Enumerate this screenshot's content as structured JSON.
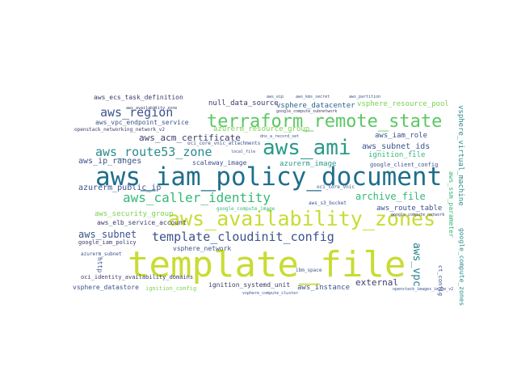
{
  "words": [
    {
      "id": "template_file",
      "text": "template_file",
      "color": "#c8dc34"
    },
    {
      "id": "aws_iam_policy_document",
      "text": "aws_iam_policy_document",
      "color": "#1f6f8b"
    },
    {
      "id": "aws_availability_zones",
      "text": "aws_availability_zones",
      "color": "#c8dc34"
    },
    {
      "id": "terraform_remote_state",
      "text": "terraform_remote_state",
      "color": "#5cc863"
    },
    {
      "id": "aws_ami",
      "text": "aws_ami",
      "color": "#2a9a8a"
    },
    {
      "id": "aws_caller_identity",
      "text": "aws_caller_identity",
      "color": "#35b779"
    },
    {
      "id": "template_cloudinit_config",
      "text": "template_cloudinit_config",
      "color": "#3b528b"
    },
    {
      "id": "aws_route53_zone",
      "text": "aws_route53_zone",
      "color": "#2c8a8c"
    },
    {
      "id": "aws_region",
      "text": "aws_region",
      "color": "#3b528b"
    },
    {
      "id": "aws_acm_certificate",
      "text": "aws_acm_certificate",
      "color": "#3b3b6b"
    },
    {
      "id": "archive_file",
      "text": "archive_file",
      "color": "#35b779"
    },
    {
      "id": "aws_subnet",
      "text": "aws_subnet",
      "color": "#3b528b"
    },
    {
      "id": "aws_vpc",
      "text": "aws_vpc",
      "color": "#26828e"
    },
    {
      "id": "aws_ip_ranges",
      "text": "aws_ip_ranges",
      "color": "#3b528b"
    },
    {
      "id": "azurerm_public_ip",
      "text": "azurerm_public_ip",
      "color": "#3b528b"
    },
    {
      "id": "aws_security_group",
      "text": "aws_security_group",
      "color": "#7ad151"
    },
    {
      "id": "aws_subnet_ids",
      "text": "aws_subnet_ids",
      "color": "#3b528b"
    },
    {
      "id": "aws_iam_role",
      "text": "aws_iam_role",
      "color": "#3b528b"
    },
    {
      "id": "ignition_file",
      "text": "ignition_file",
      "color": "#35b779"
    },
    {
      "id": "null_data_source",
      "text": "null_data_source",
      "color": "#3b3b6b"
    },
    {
      "id": "vsphere_datacenter",
      "text": "vsphere_datacenter",
      "color": "#2c5f8a"
    },
    {
      "id": "vsphere_resource_pool",
      "text": "vsphere_resource_pool",
      "color": "#7ad151"
    },
    {
      "id": "vsphere_virtual_machine",
      "text": "vsphere_virtual_machine",
      "color": "#2c8a8c"
    },
    {
      "id": "aws_ecs_task_definition",
      "text": "aws_ecs_task_definition",
      "color": "#3b3b6b"
    },
    {
      "id": "aws_vpc_endpoint_service",
      "text": "aws_vpc_endpoint_service",
      "color": "#3b528b"
    },
    {
      "id": "azurerm_resource_group",
      "text": "azurerm_resource_group",
      "color": "#7ad151"
    },
    {
      "id": "scaleway_image",
      "text": "scaleway_image",
      "color": "#3b528b"
    },
    {
      "id": "azurerm_image",
      "text": "azurerm_image",
      "color": "#2a9a8a"
    },
    {
      "id": "aws_route_table",
      "text": "aws_route_table",
      "color": "#3b528b"
    },
    {
      "id": "aws_elb_service_account",
      "text": "aws_elb_service_account",
      "color": "#3b3b6b"
    },
    {
      "id": "vsphere_network",
      "text": "vsphere_network",
      "color": "#3b528b"
    },
    {
      "id": "external",
      "text": "external",
      "color": "#3b3b6b"
    },
    {
      "id": "aws_instance",
      "text": "aws_instance",
      "color": "#3b528b"
    },
    {
      "id": "ignition_systemd_unit",
      "text": "ignition_systemd_unit",
      "color": "#3b3b6b"
    },
    {
      "id": "vsphere_datastore",
      "text": "vsphere_datastore",
      "color": "#3b528b"
    },
    {
      "id": "ignition_config",
      "text": "ignition_config",
      "color": "#7ad151"
    },
    {
      "id": "aws_ssm_parameter",
      "text": "aws_ssm_parameter",
      "color": "#35b779"
    },
    {
      "id": "google_compute_zones",
      "text": "google_compute_zones",
      "color": "#2c8a8c"
    },
    {
      "id": "google_client_config",
      "text": "google_client_config",
      "color": "#3b528b"
    },
    {
      "id": "aws_iam_policy",
      "text": "google_iam_policy",
      "color": "#3b3b6b"
    },
    {
      "id": "http",
      "text": "http",
      "color": "#3b528b"
    },
    {
      "id": "aws_identity_availability_domains",
      "text": "oci_identity_availability_domains",
      "color": "#3b3b6b"
    },
    {
      "id": "openstack_networking_network_v2",
      "text": "openstack_networking_network_v2",
      "color": "#3b3b6b"
    },
    {
      "id": "oci_core_vnic_attachments",
      "text": "oci_core_vnic_attachments",
      "color": "#3b528b"
    },
    {
      "id": "aws_s3_bucket",
      "text": "aws_s3_bucket",
      "color": "#3b528b"
    },
    {
      "id": "oci_core_vnic",
      "text": "oci_core_vnic",
      "color": "#3b528b"
    },
    {
      "id": "google_compute_image",
      "text": "google_compute_image",
      "color": "#35b779"
    },
    {
      "id": "ct_config",
      "text": "ct_config",
      "color": "#3b528b"
    },
    {
      "id": "dns_a_record_set",
      "text": "dns_a_record_set",
      "color": "#3b528b"
    },
    {
      "id": "iam_space",
      "text": "ibm_space",
      "color": "#3b528b"
    },
    {
      "id": "google_compute_subnetwork",
      "text": "google_compute_subnetwork",
      "color": "#3b3b6b"
    },
    {
      "id": "gsuite_group",
      "text": "aws_availability_zone",
      "color": "#3b3b6b"
    },
    {
      "id": "azurerm_subnet",
      "text": "azurerm_subnet",
      "color": "#3b528b"
    },
    {
      "id": "local_file",
      "text": "local_file",
      "color": "#3b528b"
    },
    {
      "id": "aws_eip",
      "text": "aws_eip",
      "color": "#3b528b"
    },
    {
      "id": "aws_kms_secret",
      "text": "aws_kms_secret",
      "color": "#3b528b"
    },
    {
      "id": "vsphere_compute_cluster",
      "text": "vsphere_compute_cluster",
      "color": "#3b528b"
    },
    {
      "id": "aws_partition",
      "text": "aws_partition",
      "color": "#3b528b"
    },
    {
      "id": "google_compute_network",
      "text": "google_compute_network",
      "color": "#3b3b6b"
    },
    {
      "id": "openstack_images_image_v2",
      "text": "openstack_images_image_v2",
      "color": "#3b528b"
    }
  ]
}
